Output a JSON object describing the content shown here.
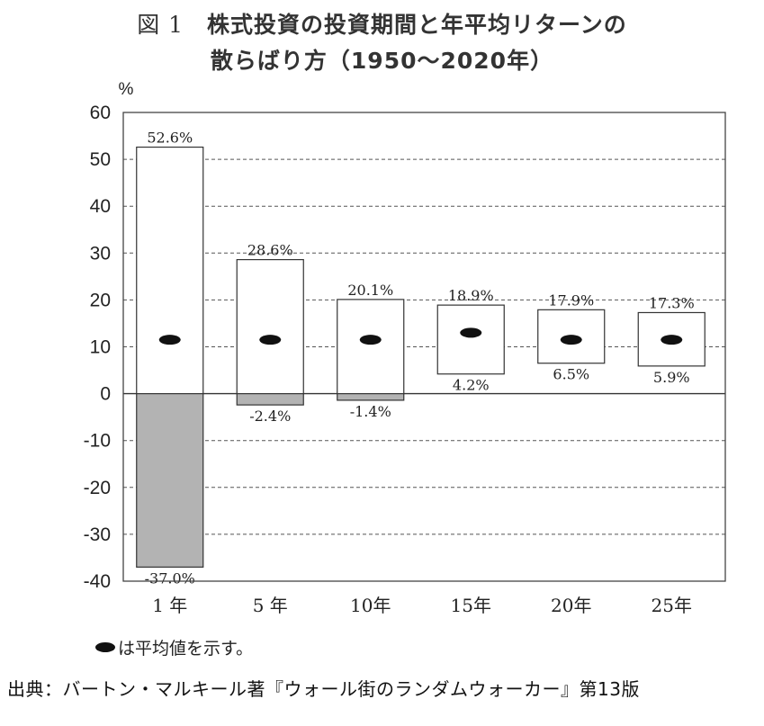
{
  "title": {
    "figure_label": "図 1",
    "line1": "株式投資の投資期間と年平均リターンの",
    "line2": "散らばり方（1950〜2020年）"
  },
  "chart_data": {
    "type": "bar",
    "ylabel": "%",
    "ylim": [
      -40,
      60
    ],
    "yticks": [
      60,
      50,
      40,
      30,
      20,
      10,
      0,
      -10,
      -20,
      -30,
      -40
    ],
    "grid": "horizontal dashed",
    "categories": [
      "1 年",
      "5 年",
      "10年",
      "15年",
      "20年",
      "25年"
    ],
    "max_labels": [
      "52.6%",
      "28.6%",
      "20.1%",
      "18.9%",
      "17.9%",
      "17.3%"
    ],
    "min_labels": [
      "-37.0%",
      "-2.4%",
      "-1.4%",
      "4.2%",
      "6.5%",
      "5.9%"
    ],
    "max": [
      52.6,
      28.6,
      20.1,
      18.9,
      17.9,
      17.3
    ],
    "min": [
      -37.0,
      -2.4,
      -1.4,
      4.2,
      6.5,
      5.9
    ],
    "mean": [
      11.5,
      11.5,
      11.5,
      13.0,
      11.5,
      11.5
    ],
    "colors": {
      "positive_fill": "#ffffff",
      "negative_fill": "#b3b3b3",
      "marker": "#111111",
      "frame": "#444444"
    }
  },
  "legend": {
    "text": "は平均値を示す。"
  },
  "source": "出典：バートン・マルキール著『ウォール街のランダムウォーカー』第13版"
}
